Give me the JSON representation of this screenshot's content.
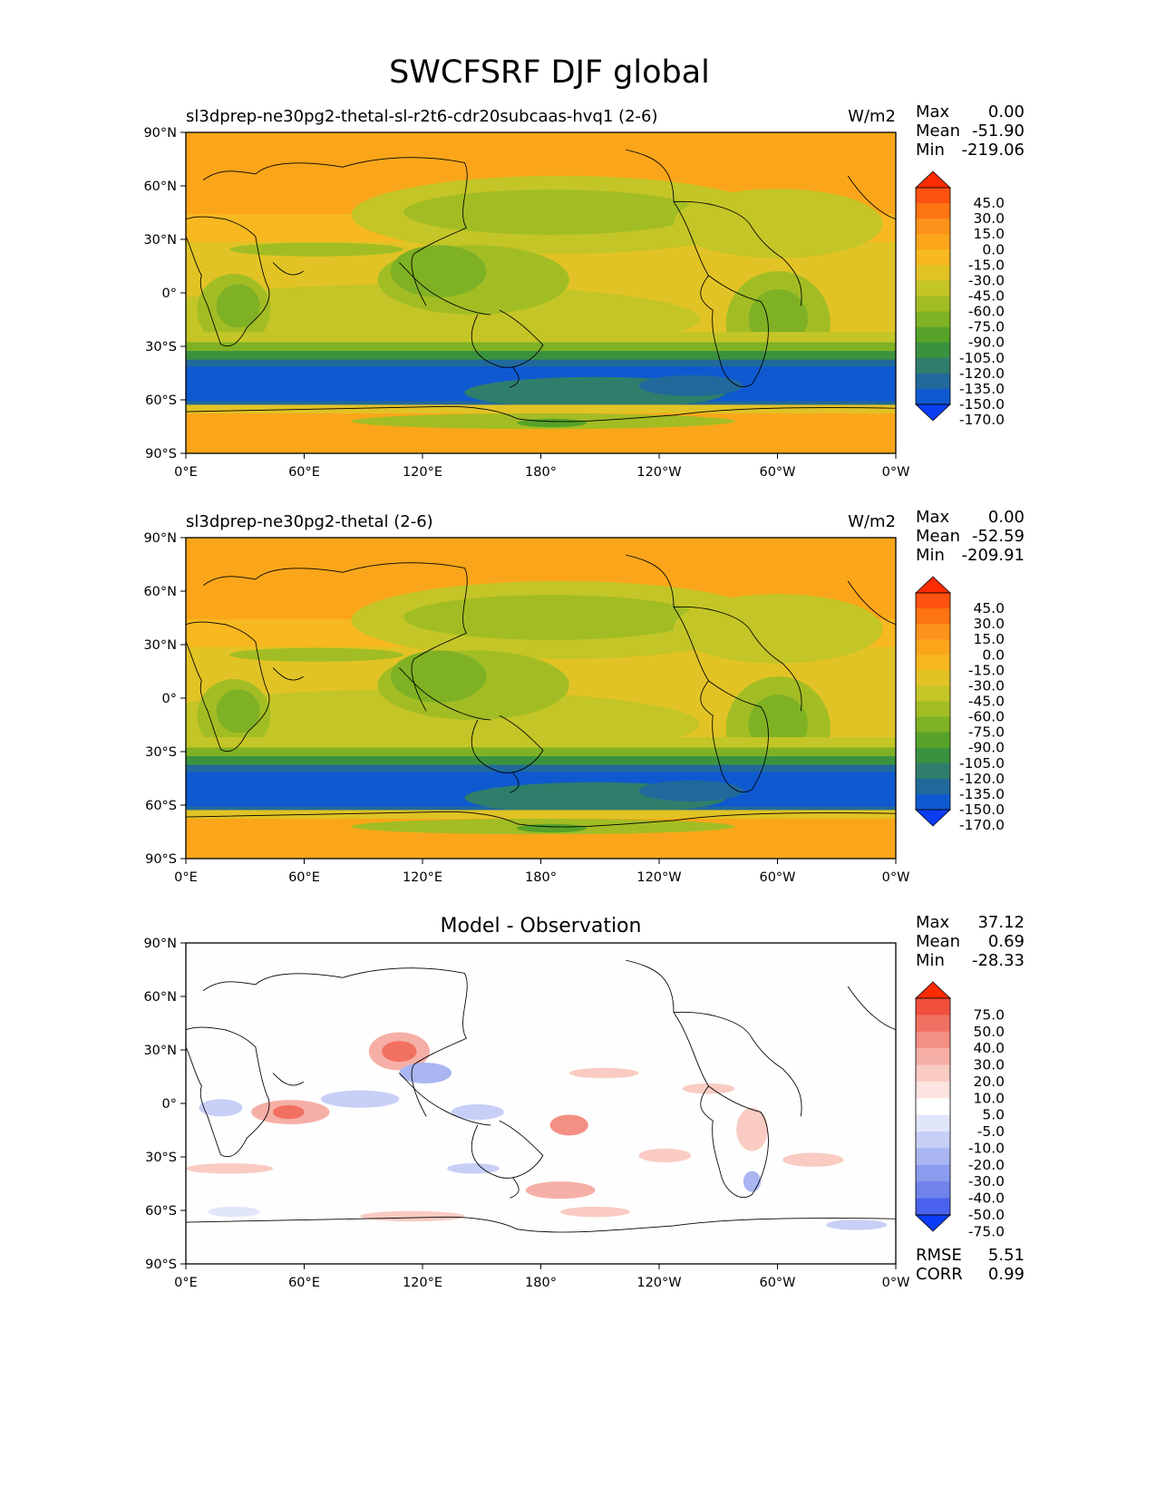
{
  "figure_title": "SWCFSRF DJF global",
  "chart_data": [
    {
      "type": "heatmap",
      "title": "sl3dprep-ne30pg2-thetal-sl-r2t6-cdr20subcaas-hvq1 (2-6)",
      "units": "W/m2",
      "stats": {
        "max_label": "Max",
        "max": "0.00",
        "mean_label": "Mean",
        "mean": "-51.90",
        "min_label": "Min",
        "min": "-219.06"
      },
      "xticks": [
        "0°E",
        "60°E",
        "120°E",
        "180°",
        "120°W",
        "60°W",
        "0°W"
      ],
      "yticks": [
        "90°N",
        "60°N",
        "30°N",
        "0°",
        "30°S",
        "60°S",
        "90°S"
      ],
      "colorbar": {
        "labels": [
          "45.0",
          "30.0",
          "15.0",
          "0.0",
          "-15.0",
          "-30.0",
          "-45.0",
          "-60.0",
          "-75.0",
          "-90.0",
          "-105.0",
          "-120.0",
          "-135.0",
          "-150.0",
          "-170.0"
        ],
        "colors": [
          "#fe2c03",
          "#fd5110",
          "#fd7413",
          "#fc9219",
          "#fba61a",
          "#f7b820",
          "#e2c325",
          "#c4c526",
          "#a2bd24",
          "#7fb124",
          "#57a32a",
          "#3a923f",
          "#2f7e6b",
          "#21699a",
          "#0f59d0",
          "#0b3df6"
        ]
      },
      "extras": []
    },
    {
      "type": "heatmap",
      "title": "sl3dprep-ne30pg2-thetal (2-6)",
      "units": "W/m2",
      "stats": {
        "max_label": "Max",
        "max": "0.00",
        "mean_label": "Mean",
        "mean": "-52.59",
        "min_label": "Min",
        "min": "-209.91"
      },
      "xticks": [
        "0°E",
        "60°E",
        "120°E",
        "180°",
        "120°W",
        "60°W",
        "0°W"
      ],
      "yticks": [
        "90°N",
        "60°N",
        "30°N",
        "0°",
        "30°S",
        "60°S",
        "90°S"
      ],
      "colorbar": {
        "labels": [
          "45.0",
          "30.0",
          "15.0",
          "0.0",
          "-15.0",
          "-30.0",
          "-45.0",
          "-60.0",
          "-75.0",
          "-90.0",
          "-105.0",
          "-120.0",
          "-135.0",
          "-150.0",
          "-170.0"
        ],
        "colors": [
          "#fe2c03",
          "#fd5110",
          "#fd7413",
          "#fc9219",
          "#fba61a",
          "#f7b820",
          "#e2c325",
          "#c4c526",
          "#a2bd24",
          "#7fb124",
          "#57a32a",
          "#3a923f",
          "#2f7e6b",
          "#21699a",
          "#0f59d0",
          "#0b3df6"
        ]
      },
      "extras": []
    },
    {
      "type": "heatmap",
      "title": "Model - Observation",
      "units": "",
      "stats": {
        "max_label": "Max",
        "max": "37.12",
        "mean_label": "Mean",
        "mean": "0.69",
        "min_label": "Min",
        "min": "-28.33"
      },
      "xticks": [
        "0°E",
        "60°E",
        "120°E",
        "180°",
        "120°W",
        "60°W",
        "0°W"
      ],
      "yticks": [
        "90°N",
        "60°N",
        "30°N",
        "0°",
        "30°S",
        "60°S",
        "90°S"
      ],
      "colorbar": {
        "labels": [
          "75.0",
          "50.0",
          "40.0",
          "30.0",
          "20.0",
          "10.0",
          "5.0",
          "-5.0",
          "-10.0",
          "-20.0",
          "-30.0",
          "-40.0",
          "-50.0",
          "-75.0"
        ],
        "colors": [
          "#fe2c03",
          "#f24f3c",
          "#f27062",
          "#f48f84",
          "#f6afa6",
          "#f9cbc3",
          "#fce4e0",
          "#ffffff",
          "#e2e6fb",
          "#c7cff7",
          "#a9b6f2",
          "#8b9bee",
          "#6f83ea",
          "#4a62ed",
          "#0b3df6"
        ]
      },
      "extras": [
        {
          "label": "RMSE",
          "value": "5.51"
        },
        {
          "label": "CORR",
          "value": "0.99"
        }
      ]
    }
  ]
}
